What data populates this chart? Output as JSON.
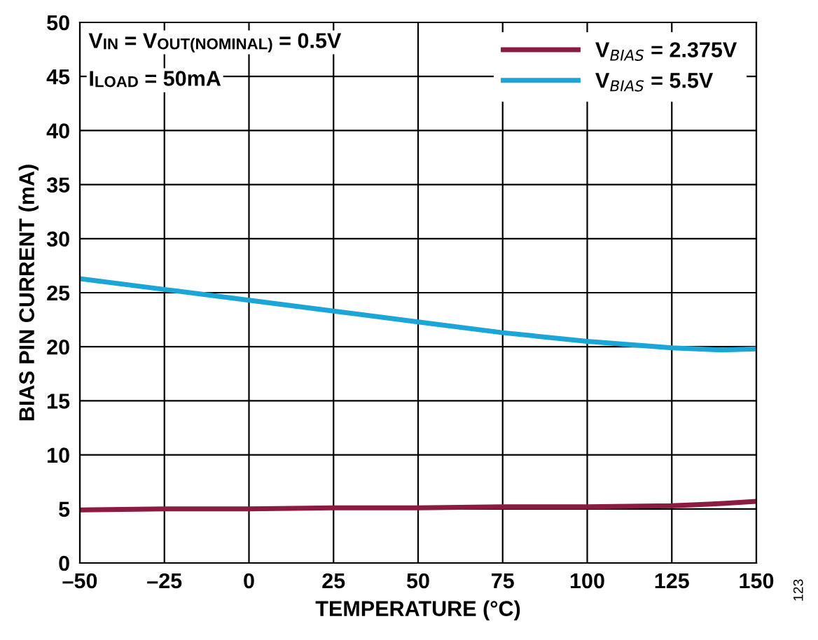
{
  "chart_data": {
    "type": "line",
    "xlabel": "TEMPERATURE (°C)",
    "ylabel": "BIAS PIN CURRENT (mA)",
    "x": [
      -50,
      -25,
      0,
      25,
      50,
      75,
      100,
      125,
      140,
      150
    ],
    "series": [
      {
        "name": "V$_{BIAS}$ = 2.375V",
        "color": "#8c1c3f",
        "values": [
          4.9,
          5.0,
          5.0,
          5.1,
          5.1,
          5.2,
          5.2,
          5.3,
          5.5,
          5.7
        ]
      },
      {
        "name": "V$_{BIAS}$ = 5.5V",
        "color": "#1ca6d8",
        "values": [
          26.3,
          25.3,
          24.3,
          23.3,
          22.3,
          21.3,
          20.5,
          19.9,
          19.7,
          19.8
        ]
      }
    ],
    "annotations": [
      "V$_{IN}$ = V$_{OUT(NOMINAL)}$ = 0.5V",
      "I$_{LOAD}$ = 50mA",
      "123"
    ],
    "xlim": [
      -50,
      150
    ],
    "ylim": [
      0,
      50
    ],
    "xticks": [
      {
        "value": -50,
        "label": "–50"
      },
      {
        "value": -25,
        "label": "–25"
      },
      0,
      25,
      50,
      75,
      100,
      125,
      150
    ],
    "yticks": [
      0,
      5,
      10,
      15,
      20,
      25,
      30,
      35,
      40,
      45,
      50
    ],
    "grid": true,
    "legend": "top right",
    "marker": "none",
    "line_style": "solid"
  }
}
